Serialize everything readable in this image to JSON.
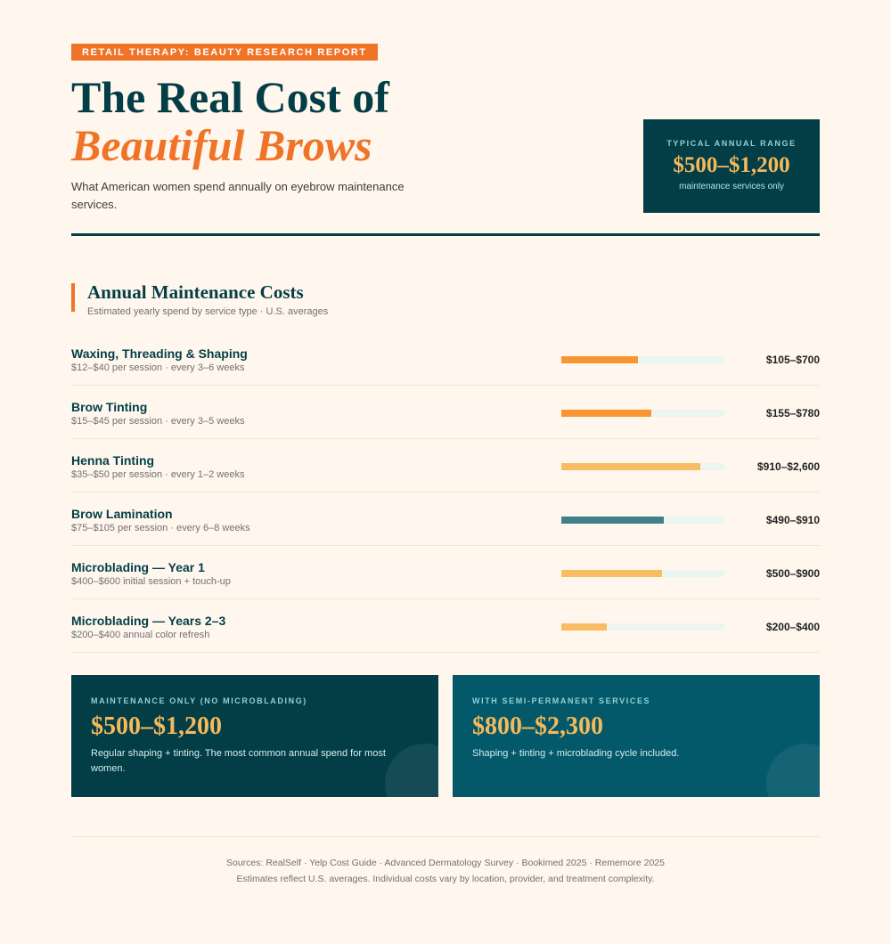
{
  "header": {
    "tag": "RETAIL THERAPY: BEAUTY RESEARCH REPORT",
    "title_line1": "The Real Cost of",
    "title_line2": "Beautiful Brows",
    "subtitle": "What American women spend annually on eyebrow maintenance services."
  },
  "range_box": {
    "label": "TYPICAL ANNUAL RANGE",
    "value": "$500–$1,200",
    "note": "maintenance services only"
  },
  "section": {
    "title": "Annual Maintenance Costs",
    "subtitle": "Estimated yearly spend by service type · U.S. averages"
  },
  "services": [
    {
      "name": "Waxing, Threading & Shaping",
      "detail": "$12–$40 per session · every 3–6 weeks",
      "price": "$105–$700",
      "bar_pct": 47,
      "color": "#f79633"
    },
    {
      "name": "Brow Tinting",
      "detail": "$15–$45 per session · every 3–5 weeks",
      "price": "$155–$780",
      "bar_pct": 55,
      "color": "#f79633"
    },
    {
      "name": "Henna Tinting",
      "detail": "$35–$50 per session · every 1–2 weeks",
      "price": "$910–$2,600",
      "bar_pct": 85,
      "color": "#f8bd62"
    },
    {
      "name": "Brow Lamination",
      "detail": "$75–$105 per session · every 6–8 weeks",
      "price": "$490–$910",
      "bar_pct": 63,
      "color": "#41808a"
    },
    {
      "name": "Microblading — Year 1",
      "detail": "$400–$600 initial session + touch-up",
      "price": "$500–$900",
      "bar_pct": 62,
      "color": "#f8bd62"
    },
    {
      "name": "Microblading — Years 2–3",
      "detail": "$200–$400 annual color refresh",
      "price": "$200–$400",
      "bar_pct": 28,
      "color": "#f8bd62"
    }
  ],
  "cards": [
    {
      "label": "MAINTENANCE ONLY (NO MICROBLADING)",
      "value": "$500–$1,200",
      "desc": "Regular shaping + tinting. The most common annual spend for most women.",
      "bg": "#033e47"
    },
    {
      "label": "WITH SEMI-PERMANENT SERVICES",
      "value": "$800–$2,300",
      "desc": "Shaping + tinting + microblading cycle included.",
      "bg": "#03596a"
    }
  ],
  "footer": {
    "sources": "Sources: RealSelf · Yelp Cost Guide · Advanced Dermatology Survey · Bookimed 2025 · Rememore 2025",
    "note": "Estimates reflect U.S. averages. Individual costs vary by location, provider, and treatment complexity."
  }
}
